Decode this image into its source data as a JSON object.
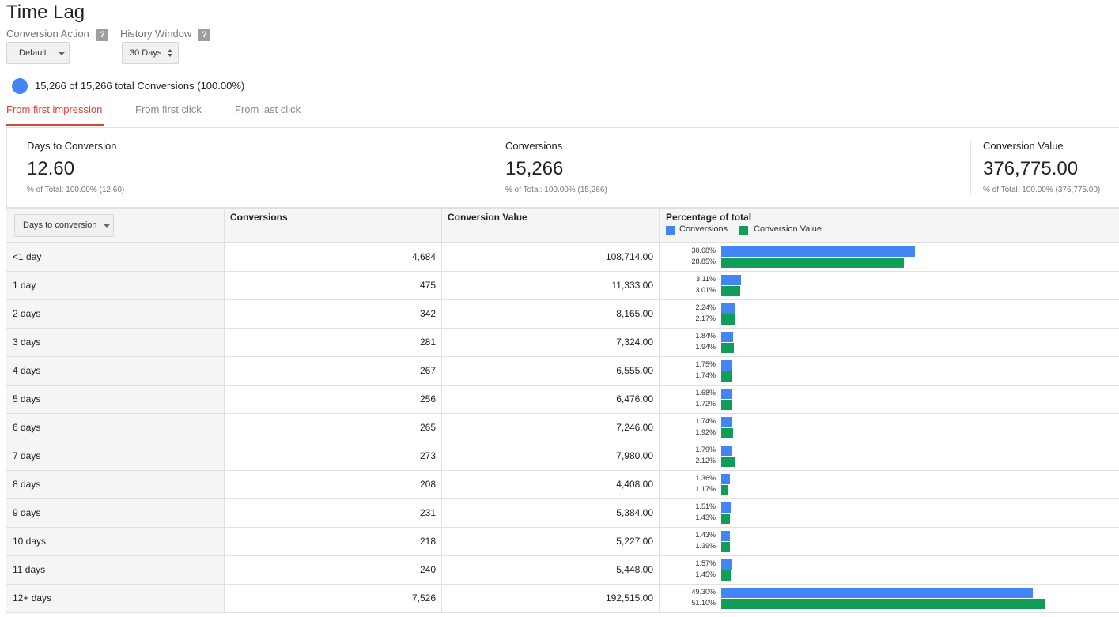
{
  "page": {
    "title": "Time Lag",
    "conversion_action_label": "Conversion Action",
    "conversion_action_value": "Default",
    "history_window_label": "History Window",
    "history_window_value": "30 Days",
    "help_glyph": "?",
    "summary": "15,266 of 15,266 total Conversions (100.00%)",
    "accent_color": "#d44638",
    "conversions_color": "#4285f4",
    "value_color": "#0f9d58"
  },
  "tabs": [
    {
      "label": "From first impression",
      "active": true
    },
    {
      "label": "From first click",
      "active": false
    },
    {
      "label": "From last click",
      "active": false
    }
  ],
  "metrics": [
    {
      "label": "Days to Conversion",
      "value": "12.60",
      "sub": "% of Total: 100.00% (12.60)"
    },
    {
      "label": "Conversions",
      "value": "15,266",
      "sub": "% of Total: 100.00% (15,266)"
    },
    {
      "label": "Conversion Value",
      "value": "376,775.00",
      "sub": "% of Total: 100.00% (376,775.00)"
    }
  ],
  "table": {
    "dimension_selector": "Days to conversion",
    "headers": {
      "conversions": "Conversions",
      "conversion_value": "Conversion Value",
      "percentage": "Percentage of total"
    },
    "legend": {
      "conversions": "Conversions",
      "conversion_value": "Conversion Value"
    }
  },
  "chart_data": {
    "type": "bar",
    "categories": [
      "<1 day",
      "1 day",
      "2 days",
      "3 days",
      "4 days",
      "5 days",
      "6 days",
      "7 days",
      "8 days",
      "9 days",
      "10 days",
      "11 days",
      "12+ days"
    ],
    "series": [
      {
        "name": "Conversions",
        "values": [
          30.68,
          3.11,
          2.24,
          1.84,
          1.75,
          1.68,
          1.74,
          1.79,
          1.36,
          1.51,
          1.43,
          1.57,
          49.3
        ]
      },
      {
        "name": "Conversion Value",
        "values": [
          28.85,
          3.01,
          2.17,
          1.94,
          1.74,
          1.72,
          1.92,
          2.12,
          1.17,
          1.43,
          1.39,
          1.45,
          51.1
        ]
      }
    ],
    "title": "Percentage of total",
    "ylim": [
      0,
      100
    ]
  },
  "rows": [
    {
      "label": "<1 day",
      "conversions": "4,684",
      "value": "108,714.00",
      "pct_conv": "30.68%",
      "pct_val": "28.85%"
    },
    {
      "label": "1 day",
      "conversions": "475",
      "value": "11,333.00",
      "pct_conv": "3.11%",
      "pct_val": "3.01%"
    },
    {
      "label": "2 days",
      "conversions": "342",
      "value": "8,165.00",
      "pct_conv": "2.24%",
      "pct_val": "2.17%"
    },
    {
      "label": "3 days",
      "conversions": "281",
      "value": "7,324.00",
      "pct_conv": "1.84%",
      "pct_val": "1.94%"
    },
    {
      "label": "4 days",
      "conversions": "267",
      "value": "6,555.00",
      "pct_conv": "1.75%",
      "pct_val": "1.74%"
    },
    {
      "label": "5 days",
      "conversions": "256",
      "value": "6,476.00",
      "pct_conv": "1.68%",
      "pct_val": "1.72%"
    },
    {
      "label": "6 days",
      "conversions": "265",
      "value": "7,246.00",
      "pct_conv": "1.74%",
      "pct_val": "1.92%"
    },
    {
      "label": "7 days",
      "conversions": "273",
      "value": "7,980.00",
      "pct_conv": "1.79%",
      "pct_val": "2.12%"
    },
    {
      "label": "8 days",
      "conversions": "208",
      "value": "4,408.00",
      "pct_conv": "1.36%",
      "pct_val": "1.17%"
    },
    {
      "label": "9 days",
      "conversions": "231",
      "value": "5,384.00",
      "pct_conv": "1.51%",
      "pct_val": "1.43%"
    },
    {
      "label": "10 days",
      "conversions": "218",
      "value": "5,227.00",
      "pct_conv": "1.43%",
      "pct_val": "1.39%"
    },
    {
      "label": "11 days",
      "conversions": "240",
      "value": "5,448.00",
      "pct_conv": "1.57%",
      "pct_val": "1.45%"
    },
    {
      "label": "12+ days",
      "conversions": "7,526",
      "value": "192,515.00",
      "pct_conv": "49.30%",
      "pct_val": "51.10%"
    }
  ]
}
